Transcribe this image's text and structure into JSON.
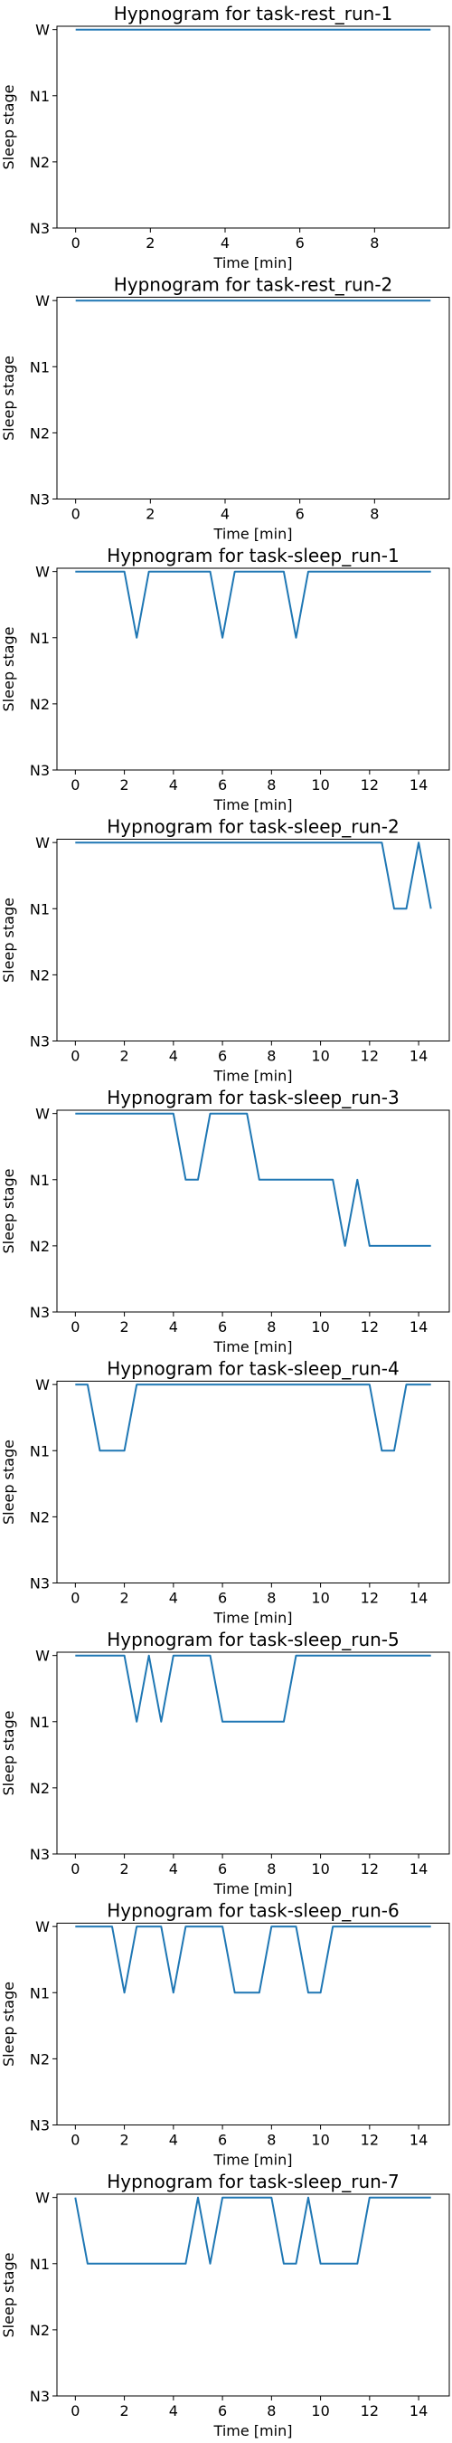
{
  "chart_data": [
    {
      "type": "line",
      "title": "Hypnogram for task-rest_run-1",
      "xlabel": "Time [min]",
      "ylabel": "Sleep stage",
      "xlim": [
        -0.5,
        10.0
      ],
      "ylim": [
        "N3",
        "W"
      ],
      "xticks": [
        0,
        2,
        4,
        6,
        8
      ],
      "yticks": [
        "W",
        "N1",
        "N2",
        "N3"
      ],
      "grid": false,
      "series": [
        {
          "color": "#1f77b4",
          "points": [
            [
              0,
              "W"
            ],
            [
              9.5,
              "W"
            ]
          ]
        }
      ]
    },
    {
      "type": "line",
      "title": "Hypnogram for task-rest_run-2",
      "xlabel": "Time [min]",
      "ylabel": "Sleep stage",
      "xlim": [
        -0.5,
        10.0
      ],
      "ylim": [
        "N3",
        "W"
      ],
      "xticks": [
        0,
        2,
        4,
        6,
        8
      ],
      "yticks": [
        "W",
        "N1",
        "N2",
        "N3"
      ],
      "grid": false,
      "series": [
        {
          "color": "#1f77b4",
          "points": [
            [
              0,
              "W"
            ],
            [
              9.5,
              "W"
            ]
          ]
        }
      ]
    },
    {
      "type": "line",
      "title": "Hypnogram for task-sleep_run-1",
      "xlabel": "Time [min]",
      "ylabel": "Sleep stage",
      "xlim": [
        -0.75,
        15.25
      ],
      "ylim": [
        "N3",
        "W"
      ],
      "xticks": [
        0,
        2,
        4,
        6,
        8,
        10,
        12,
        14
      ],
      "yticks": [
        "W",
        "N1",
        "N2",
        "N3"
      ],
      "grid": false,
      "series": [
        {
          "color": "#1f77b4",
          "points": [
            [
              0,
              "W"
            ],
            [
              2,
              "W"
            ],
            [
              2.5,
              "N1"
            ],
            [
              3,
              "W"
            ],
            [
              5.5,
              "W"
            ],
            [
              6,
              "N1"
            ],
            [
              6.5,
              "W"
            ],
            [
              8.5,
              "W"
            ],
            [
              9,
              "N1"
            ],
            [
              9.5,
              "W"
            ],
            [
              14.5,
              "W"
            ]
          ]
        }
      ]
    },
    {
      "type": "line",
      "title": "Hypnogram for task-sleep_run-2",
      "xlabel": "Time [min]",
      "ylabel": "Sleep stage",
      "xlim": [
        -0.75,
        15.25
      ],
      "ylim": [
        "N3",
        "W"
      ],
      "xticks": [
        0,
        2,
        4,
        6,
        8,
        10,
        12,
        14
      ],
      "yticks": [
        "W",
        "N1",
        "N2",
        "N3"
      ],
      "grid": false,
      "series": [
        {
          "color": "#1f77b4",
          "points": [
            [
              0,
              "W"
            ],
            [
              12.5,
              "W"
            ],
            [
              13,
              "N1"
            ],
            [
              13.5,
              "N1"
            ],
            [
              14,
              "W"
            ],
            [
              14.5,
              "N1"
            ]
          ]
        }
      ]
    },
    {
      "type": "line",
      "title": "Hypnogram for task-sleep_run-3",
      "xlabel": "Time [min]",
      "ylabel": "Sleep stage",
      "xlim": [
        -0.75,
        15.25
      ],
      "ylim": [
        "N3",
        "W"
      ],
      "xticks": [
        0,
        2,
        4,
        6,
        8,
        10,
        12,
        14
      ],
      "yticks": [
        "W",
        "N1",
        "N2",
        "N3"
      ],
      "grid": false,
      "series": [
        {
          "color": "#1f77b4",
          "points": [
            [
              0,
              "W"
            ],
            [
              4,
              "W"
            ],
            [
              4.5,
              "N1"
            ],
            [
              5,
              "N1"
            ],
            [
              5.5,
              "W"
            ],
            [
              7,
              "W"
            ],
            [
              7.5,
              "N1"
            ],
            [
              10.5,
              "N1"
            ],
            [
              11,
              "N2"
            ],
            [
              11.5,
              "N1"
            ],
            [
              12,
              "N2"
            ],
            [
              14.5,
              "N2"
            ]
          ]
        }
      ]
    },
    {
      "type": "line",
      "title": "Hypnogram for task-sleep_run-4",
      "xlabel": "Time [min]",
      "ylabel": "Sleep stage",
      "xlim": [
        -0.75,
        15.25
      ],
      "ylim": [
        "N3",
        "W"
      ],
      "xticks": [
        0,
        2,
        4,
        6,
        8,
        10,
        12,
        14
      ],
      "yticks": [
        "W",
        "N1",
        "N2",
        "N3"
      ],
      "grid": false,
      "series": [
        {
          "color": "#1f77b4",
          "points": [
            [
              0,
              "W"
            ],
            [
              0.5,
              "W"
            ],
            [
              1,
              "N1"
            ],
            [
              2,
              "N1"
            ],
            [
              2.5,
              "W"
            ],
            [
              12,
              "W"
            ],
            [
              12.5,
              "N1"
            ],
            [
              13,
              "N1"
            ],
            [
              13.5,
              "W"
            ],
            [
              14.5,
              "W"
            ]
          ]
        }
      ]
    },
    {
      "type": "line",
      "title": "Hypnogram for task-sleep_run-5",
      "xlabel": "Time [min]",
      "ylabel": "Sleep stage",
      "xlim": [
        -0.75,
        15.25
      ],
      "ylim": [
        "N3",
        "W"
      ],
      "xticks": [
        0,
        2,
        4,
        6,
        8,
        10,
        12,
        14
      ],
      "yticks": [
        "W",
        "N1",
        "N2",
        "N3"
      ],
      "grid": false,
      "series": [
        {
          "color": "#1f77b4",
          "points": [
            [
              0,
              "W"
            ],
            [
              2,
              "W"
            ],
            [
              2.5,
              "N1"
            ],
            [
              3,
              "W"
            ],
            [
              3.5,
              "N1"
            ],
            [
              4,
              "W"
            ],
            [
              5.5,
              "W"
            ],
            [
              6,
              "N1"
            ],
            [
              8.5,
              "N1"
            ],
            [
              9,
              "W"
            ],
            [
              14.5,
              "W"
            ]
          ]
        }
      ]
    },
    {
      "type": "line",
      "title": "Hypnogram for task-sleep_run-6",
      "xlabel": "Time [min]",
      "ylabel": "Sleep stage",
      "xlim": [
        -0.75,
        15.25
      ],
      "ylim": [
        "N3",
        "W"
      ],
      "xticks": [
        0,
        2,
        4,
        6,
        8,
        10,
        12,
        14
      ],
      "yticks": [
        "W",
        "N1",
        "N2",
        "N3"
      ],
      "grid": false,
      "series": [
        {
          "color": "#1f77b4",
          "points": [
            [
              0,
              "W"
            ],
            [
              1.5,
              "W"
            ],
            [
              2,
              "N1"
            ],
            [
              2.5,
              "W"
            ],
            [
              3.5,
              "W"
            ],
            [
              4,
              "N1"
            ],
            [
              4.5,
              "W"
            ],
            [
              6,
              "W"
            ],
            [
              6.5,
              "N1"
            ],
            [
              7.5,
              "N1"
            ],
            [
              8,
              "W"
            ],
            [
              9,
              "W"
            ],
            [
              9.5,
              "N1"
            ],
            [
              10,
              "N1"
            ],
            [
              10.5,
              "W"
            ],
            [
              14.5,
              "W"
            ]
          ]
        }
      ]
    },
    {
      "type": "line",
      "title": "Hypnogram for task-sleep_run-7",
      "xlabel": "Time [min]",
      "ylabel": "Sleep stage",
      "xlim": [
        -0.75,
        15.25
      ],
      "ylim": [
        "N3",
        "W"
      ],
      "xticks": [
        0,
        2,
        4,
        6,
        8,
        10,
        12,
        14
      ],
      "yticks": [
        "W",
        "N1",
        "N2",
        "N3"
      ],
      "grid": false,
      "series": [
        {
          "color": "#1f77b4",
          "points": [
            [
              0,
              "W"
            ],
            [
              0.5,
              "N1"
            ],
            [
              4.5,
              "N1"
            ],
            [
              5,
              "W"
            ],
            [
              5.5,
              "N1"
            ],
            [
              6,
              "W"
            ],
            [
              8,
              "W"
            ],
            [
              8.5,
              "N1"
            ],
            [
              9,
              "N1"
            ],
            [
              9.5,
              "W"
            ],
            [
              10,
              "N1"
            ],
            [
              11.5,
              "N1"
            ],
            [
              12,
              "W"
            ],
            [
              14.5,
              "W"
            ]
          ]
        }
      ]
    }
  ]
}
